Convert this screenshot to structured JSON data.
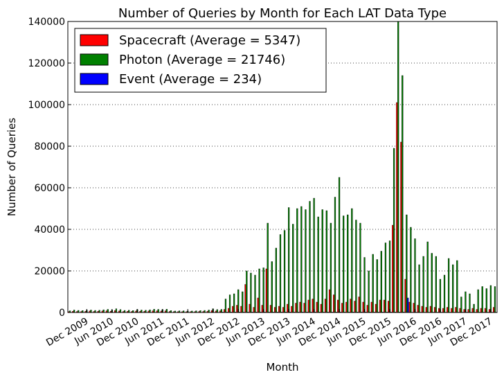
{
  "chart_data": {
    "type": "bar",
    "title": "Number of Queries by Month for Each LAT Data Type",
    "x_label": "Month",
    "y_label": "Number of Queries",
    "categories": [
      null,
      null,
      null,
      null,
      "Dec 2009",
      null,
      null,
      null,
      null,
      null,
      "Jun 2010",
      null,
      null,
      null,
      null,
      null,
      "Dec 2010",
      null,
      null,
      null,
      null,
      null,
      "Jun 2011",
      null,
      null,
      null,
      null,
      null,
      "Dec 2011",
      null,
      null,
      null,
      null,
      null,
      "Jun 2012",
      null,
      null,
      null,
      null,
      null,
      "Dec 2012",
      null,
      null,
      null,
      null,
      null,
      "Jun 2013",
      null,
      null,
      null,
      null,
      null,
      "Dec 2013",
      null,
      null,
      null,
      null,
      null,
      "Jun 2014",
      null,
      null,
      null,
      null,
      null,
      "Dec 2014",
      null,
      null,
      null,
      null,
      null,
      "Jun 2015",
      null,
      null,
      null,
      null,
      null,
      "Dec 2015",
      null,
      null,
      null,
      null,
      null,
      "Jun 2016",
      null,
      null,
      null,
      null,
      null,
      "Dec 2016",
      null,
      null,
      null,
      null,
      null,
      "Jun 2017",
      null,
      null,
      null,
      null,
      null,
      "Dec 2017",
      null
    ],
    "series": [
      {
        "name": "Spacecraft (Average = 5347)",
        "color": "#ff0000",
        "values": [
          400,
          600,
          500,
          500,
          600,
          700,
          500,
          600,
          700,
          800,
          600,
          900,
          700,
          500,
          600,
          500,
          700,
          600,
          600,
          700,
          800,
          800,
          700,
          800,
          500,
          400,
          400,
          400,
          400,
          400,
          400,
          500,
          500,
          600,
          900,
          700,
          800,
          1500,
          2000,
          3000,
          3500,
          3000,
          13500,
          4000,
          2500,
          7000,
          3500,
          21000,
          3500,
          2500,
          3000,
          2500,
          4000,
          3000,
          4500,
          5000,
          4500,
          6000,
          6500,
          5000,
          4000,
          6500,
          11000,
          8500,
          6000,
          4500,
          5000,
          6500,
          5500,
          7500,
          5000,
          3500,
          5000,
          4000,
          6000,
          6000,
          5500,
          42000,
          101000,
          82000,
          16000,
          5000,
          4500,
          3500,
          3000,
          2500,
          3000,
          2500,
          2000,
          2000,
          2500,
          2000,
          2500,
          2000,
          1500,
          1500,
          2000,
          1500,
          2000,
          2000,
          1500,
          2500
        ]
      },
      {
        "name": "Photon (Average = 21746)",
        "color": "#008000",
        "values": [
          800,
          1200,
          1000,
          900,
          1100,
          1200,
          1000,
          1100,
          1300,
          1500,
          1200,
          1800,
          1400,
          1000,
          1100,
          900,
          1400,
          1200,
          1100,
          1300,
          1600,
          1500,
          1400,
          1600,
          900,
          700,
          800,
          800,
          700,
          700,
          800,
          900,
          1000,
          1200,
          1800,
          1400,
          1500,
          6500,
          8500,
          9000,
          11000,
          10000,
          20000,
          19000,
          18000,
          21000,
          21500,
          43000,
          24500,
          31000,
          37500,
          39500,
          50500,
          42500,
          50000,
          51000,
          49500,
          53500,
          55000,
          46000,
          49500,
          49000,
          43000,
          55500,
          65000,
          46500,
          47000,
          50000,
          44500,
          43000,
          26500,
          20000,
          28000,
          25500,
          29500,
          33500,
          34500,
          79000,
          140000,
          114000,
          47000,
          41000,
          35500,
          23000,
          27000,
          34000,
          28500,
          27000,
          16000,
          18000,
          26000,
          23000,
          25000,
          7500,
          10000,
          9000,
          4000,
          11000,
          12500,
          11500,
          13000,
          12500
        ]
      },
      {
        "name": "Event (Average = 234)",
        "color": "#0000ff",
        "values": [
          50,
          50,
          50,
          50,
          50,
          50,
          50,
          50,
          50,
          50,
          50,
          50,
          50,
          50,
          50,
          50,
          50,
          50,
          50,
          50,
          50,
          50,
          50,
          50,
          50,
          50,
          50,
          50,
          50,
          50,
          50,
          50,
          50,
          50,
          50,
          50,
          200,
          200,
          200,
          200,
          200,
          200,
          200,
          200,
          200,
          200,
          200,
          200,
          200,
          200,
          200,
          200,
          200,
          200,
          200,
          200,
          200,
          200,
          200,
          200,
          200,
          200,
          200,
          200,
          200,
          200,
          200,
          200,
          200,
          200,
          200,
          200,
          200,
          200,
          200,
          200,
          200,
          200,
          200,
          200,
          7000,
          150,
          150,
          150,
          150,
          150,
          150,
          150,
          150,
          150,
          150,
          150,
          150,
          150,
          150,
          150,
          150,
          150,
          150,
          150,
          150,
          150
        ]
      }
    ],
    "ylim": [
      0,
      140000
    ],
    "yticks": [
      0,
      20000,
      40000,
      60000,
      80000,
      100000,
      120000,
      140000
    ],
    "grid": true,
    "legend": "upper left"
  }
}
